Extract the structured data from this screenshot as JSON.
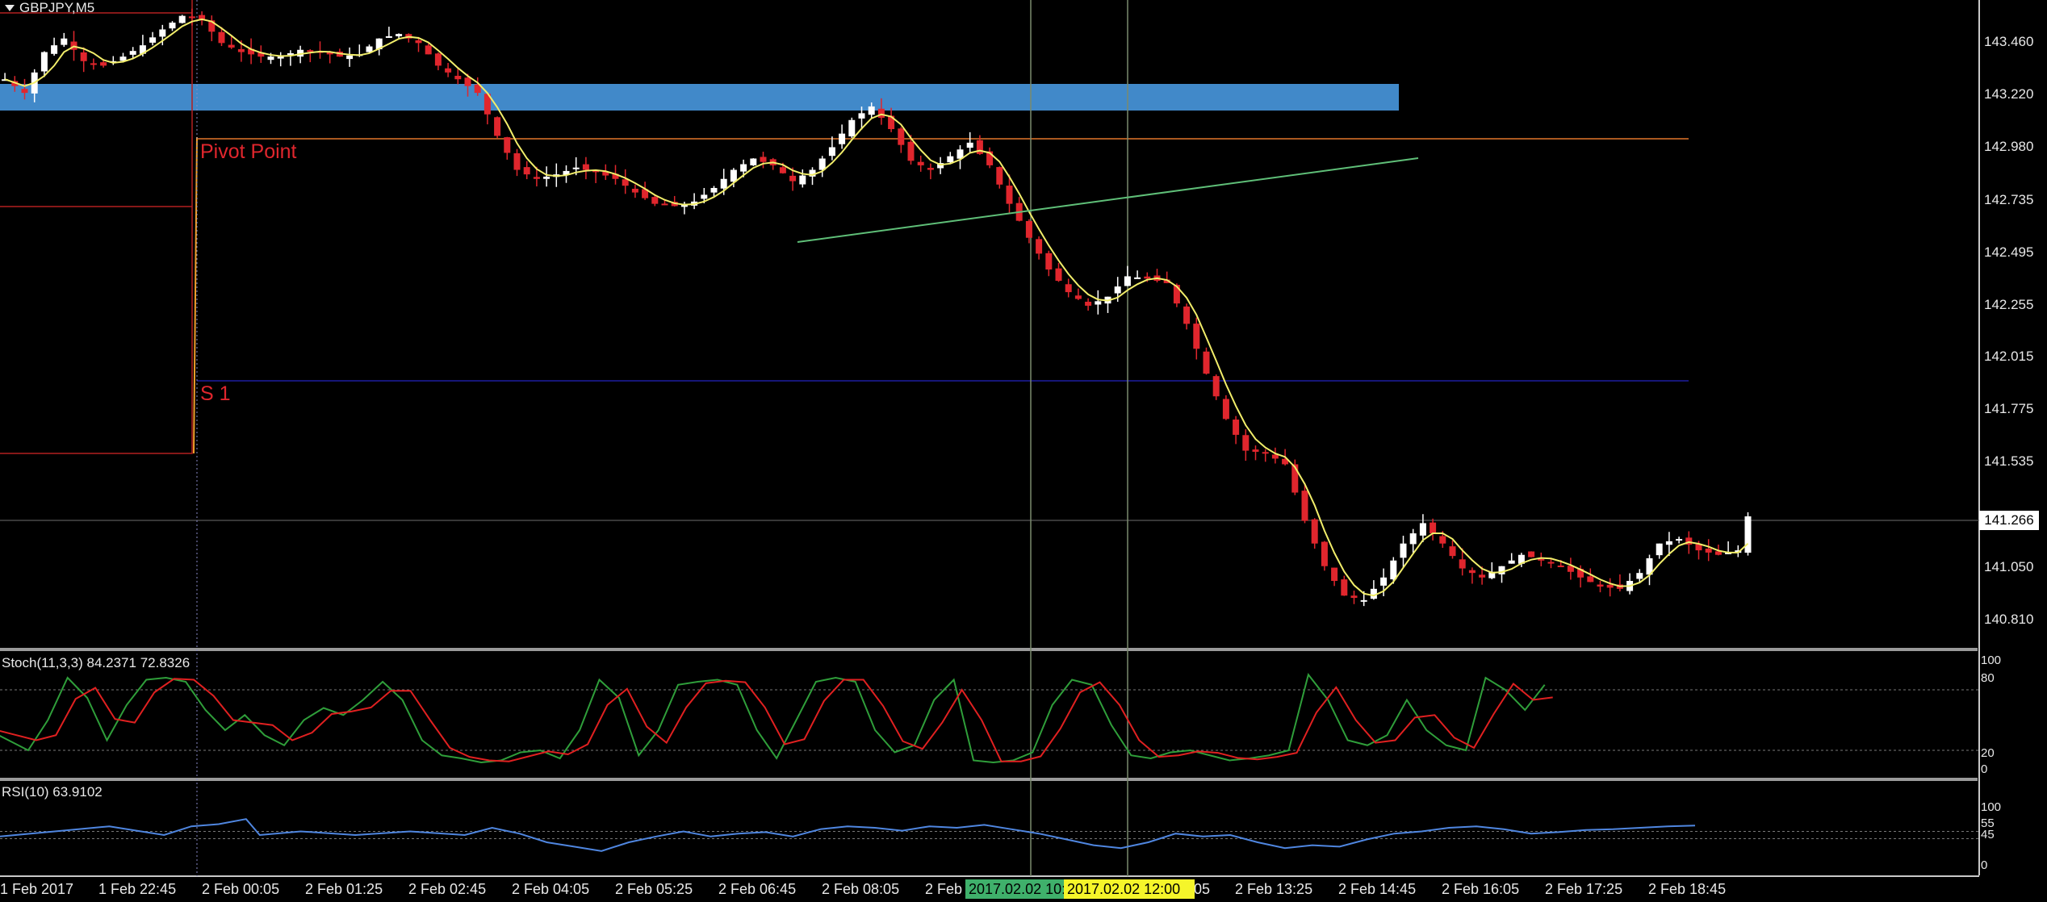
{
  "window": {
    "title": "GBPJPY,M5"
  },
  "levels": {
    "pivot_label": "Pivot Point",
    "s1_label": "S 1"
  },
  "price_axis": {
    "ticks": [
      "143.460",
      "143.220",
      "142.980",
      "142.735",
      "142.495",
      "142.255",
      "142.015",
      "141.775",
      "141.535",
      "141.050",
      "140.810"
    ],
    "current_price": "141.266"
  },
  "indicators": {
    "stoch_label": "Stoch(11,3,3) 84.2371 72.8326",
    "stoch_levels": [
      "100",
      "80",
      "20",
      "0"
    ],
    "rsi_label": "RSI(10) 63.9102",
    "rsi_levels": [
      "100",
      "55",
      "45",
      "0"
    ]
  },
  "time_axis": {
    "ticks": [
      "1 Feb 2017",
      "1 Feb 22:45",
      "2 Feb 00:05",
      "2 Feb 01:25",
      "2 Feb 02:45",
      "2 Feb 04:05",
      "2 Feb 05:25",
      "2 Feb 06:45",
      "2 Feb 08:05",
      "2 Feb",
      ":05",
      "2 Feb 13:25",
      "2 Feb 14:45",
      "2 Feb 16:05",
      "2 Feb 17:25",
      "2 Feb 18:45"
    ],
    "crosshair_tag_1": "2017.02.02 10:00",
    "crosshair_tag_2": "2017.02.02 12:00"
  },
  "colors": {
    "bull": "#ffffff",
    "bear": "#e0262d",
    "ma": "#f2ee6a",
    "zone": "#4189c9",
    "pivot": "#e2762b",
    "s1": "#1e1ea0",
    "trend": "#5fbf78",
    "stoch_main": "#2f9e3a",
    "stoch_signal": "#e02020",
    "rsi": "#4f86e0"
  },
  "chart_data": {
    "type": "line",
    "title": "GBPJPY,M5",
    "ylim": [
      140.7,
      143.55
    ],
    "price_path": [
      [
        0,
        143.2
      ],
      [
        2,
        143.14
      ],
      [
        4,
        143.32
      ],
      [
        6,
        143.38
      ],
      [
        8,
        143.28
      ],
      [
        10,
        143.26
      ],
      [
        12,
        143.3
      ],
      [
        14,
        143.35
      ],
      [
        16,
        143.42
      ],
      [
        18,
        143.48
      ],
      [
        20,
        143.46
      ],
      [
        22,
        143.36
      ],
      [
        24,
        143.32
      ],
      [
        26,
        143.3
      ],
      [
        28,
        143.3
      ],
      [
        30,
        143.33
      ],
      [
        32,
        143.32
      ],
      [
        34,
        143.3
      ],
      [
        36,
        143.31
      ],
      [
        38,
        143.38
      ],
      [
        40,
        143.4
      ],
      [
        42,
        143.36
      ],
      [
        44,
        143.26
      ],
      [
        46,
        143.2
      ],
      [
        48,
        143.14
      ],
      [
        50,
        142.95
      ],
      [
        52,
        142.8
      ],
      [
        54,
        142.76
      ],
      [
        56,
        142.78
      ],
      [
        58,
        142.81
      ],
      [
        60,
        142.79
      ],
      [
        62,
        142.76
      ],
      [
        64,
        142.7
      ],
      [
        66,
        142.65
      ],
      [
        68,
        142.64
      ],
      [
        70,
        142.66
      ],
      [
        72,
        142.72
      ],
      [
        74,
        142.8
      ],
      [
        76,
        142.85
      ],
      [
        78,
        142.82
      ],
      [
        80,
        142.75
      ],
      [
        82,
        142.8
      ],
      [
        84,
        142.9
      ],
      [
        86,
        143.02
      ],
      [
        88,
        143.08
      ],
      [
        90,
        142.98
      ],
      [
        92,
        142.84
      ],
      [
        94,
        142.8
      ],
      [
        96,
        142.86
      ],
      [
        98,
        142.92
      ],
      [
        100,
        142.82
      ],
      [
        102,
        142.65
      ],
      [
        104,
        142.5
      ],
      [
        106,
        142.36
      ],
      [
        108,
        142.26
      ],
      [
        110,
        142.2
      ],
      [
        112,
        142.24
      ],
      [
        114,
        142.33
      ],
      [
        116,
        142.32
      ],
      [
        118,
        142.3
      ],
      [
        120,
        142.12
      ],
      [
        122,
        141.9
      ],
      [
        124,
        141.7
      ],
      [
        126,
        141.56
      ],
      [
        128,
        141.55
      ],
      [
        130,
        141.5
      ],
      [
        132,
        141.25
      ],
      [
        134,
        141.05
      ],
      [
        136,
        140.92
      ],
      [
        138,
        140.9
      ],
      [
        140,
        141.0
      ],
      [
        142,
        141.15
      ],
      [
        144,
        141.24
      ],
      [
        146,
        141.15
      ],
      [
        148,
        141.04
      ],
      [
        150,
        141.0
      ],
      [
        152,
        141.05
      ],
      [
        154,
        141.1
      ],
      [
        156,
        141.08
      ],
      [
        158,
        141.05
      ],
      [
        160,
        141.0
      ],
      [
        162,
        140.96
      ],
      [
        164,
        140.95
      ],
      [
        166,
        141.02
      ],
      [
        168,
        141.15
      ],
      [
        170,
        141.17
      ],
      [
        172,
        141.12
      ],
      [
        174,
        141.1
      ],
      [
        176,
        141.12
      ],
      [
        177,
        141.27
      ]
    ],
    "stoch_main_path": [
      [
        0,
        40
      ],
      [
        4,
        20
      ],
      [
        6,
        50
      ],
      [
        8,
        92
      ],
      [
        10,
        72
      ],
      [
        12,
        30
      ],
      [
        14,
        65
      ],
      [
        16,
        90
      ],
      [
        18,
        92
      ],
      [
        20,
        88
      ],
      [
        22,
        60
      ],
      [
        24,
        40
      ],
      [
        26,
        55
      ],
      [
        28,
        35
      ],
      [
        30,
        25
      ],
      [
        32,
        50
      ],
      [
        34,
        62
      ],
      [
        36,
        55
      ],
      [
        38,
        70
      ],
      [
        40,
        88
      ],
      [
        42,
        70
      ],
      [
        44,
        30
      ],
      [
        46,
        15
      ],
      [
        48,
        12
      ],
      [
        50,
        8
      ],
      [
        52,
        10
      ],
      [
        54,
        18
      ],
      [
        56,
        20
      ],
      [
        58,
        12
      ],
      [
        60,
        40
      ],
      [
        62,
        90
      ],
      [
        64,
        72
      ],
      [
        66,
        15
      ],
      [
        68,
        40
      ],
      [
        70,
        85
      ],
      [
        72,
        88
      ],
      [
        74,
        90
      ],
      [
        76,
        85
      ],
      [
        78,
        40
      ],
      [
        80,
        12
      ],
      [
        82,
        50
      ],
      [
        84,
        88
      ],
      [
        86,
        92
      ],
      [
        88,
        88
      ],
      [
        90,
        40
      ],
      [
        92,
        18
      ],
      [
        94,
        25
      ],
      [
        96,
        70
      ],
      [
        98,
        90
      ],
      [
        100,
        10
      ],
      [
        102,
        8
      ],
      [
        104,
        10
      ],
      [
        106,
        18
      ],
      [
        108,
        65
      ],
      [
        110,
        90
      ],
      [
        112,
        85
      ],
      [
        114,
        45
      ],
      [
        116,
        15
      ],
      [
        118,
        12
      ],
      [
        120,
        18
      ],
      [
        122,
        20
      ],
      [
        124,
        15
      ],
      [
        126,
        10
      ],
      [
        128,
        12
      ],
      [
        130,
        15
      ],
      [
        132,
        20
      ],
      [
        134,
        95
      ],
      [
        136,
        70
      ],
      [
        138,
        30
      ],
      [
        140,
        25
      ],
      [
        142,
        35
      ],
      [
        144,
        70
      ],
      [
        146,
        40
      ],
      [
        148,
        25
      ],
      [
        150,
        20
      ],
      [
        152,
        92
      ],
      [
        154,
        80
      ],
      [
        156,
        60
      ],
      [
        158,
        85
      ]
    ],
    "rsi_path": [
      [
        0,
        48
      ],
      [
        4,
        55
      ],
      [
        8,
        62
      ],
      [
        12,
        50
      ],
      [
        14,
        62
      ],
      [
        16,
        65
      ],
      [
        18,
        72
      ],
      [
        19,
        50
      ],
      [
        22,
        55
      ],
      [
        26,
        50
      ],
      [
        30,
        55
      ],
      [
        34,
        50
      ],
      [
        36,
        60
      ],
      [
        38,
        52
      ],
      [
        40,
        40
      ],
      [
        42,
        34
      ],
      [
        44,
        28
      ],
      [
        46,
        40
      ],
      [
        48,
        48
      ],
      [
        50,
        55
      ],
      [
        52,
        48
      ],
      [
        54,
        52
      ],
      [
        56,
        54
      ],
      [
        58,
        48
      ],
      [
        60,
        58
      ],
      [
        62,
        62
      ],
      [
        64,
        60
      ],
      [
        66,
        56
      ],
      [
        68,
        62
      ],
      [
        70,
        60
      ],
      [
        72,
        64
      ],
      [
        74,
        58
      ],
      [
        76,
        52
      ],
      [
        78,
        44
      ],
      [
        80,
        36
      ],
      [
        82,
        32
      ],
      [
        84,
        40
      ],
      [
        86,
        52
      ],
      [
        88,
        48
      ],
      [
        90,
        50
      ],
      [
        92,
        40
      ],
      [
        94,
        32
      ],
      [
        96,
        36
      ],
      [
        98,
        34
      ],
      [
        100,
        44
      ],
      [
        102,
        52
      ],
      [
        104,
        55
      ],
      [
        106,
        60
      ],
      [
        108,
        62
      ],
      [
        110,
        58
      ],
      [
        112,
        52
      ],
      [
        114,
        54
      ],
      [
        116,
        57
      ],
      [
        118,
        58
      ],
      [
        120,
        60
      ],
      [
        122,
        62
      ],
      [
        124,
        63
      ]
    ]
  }
}
